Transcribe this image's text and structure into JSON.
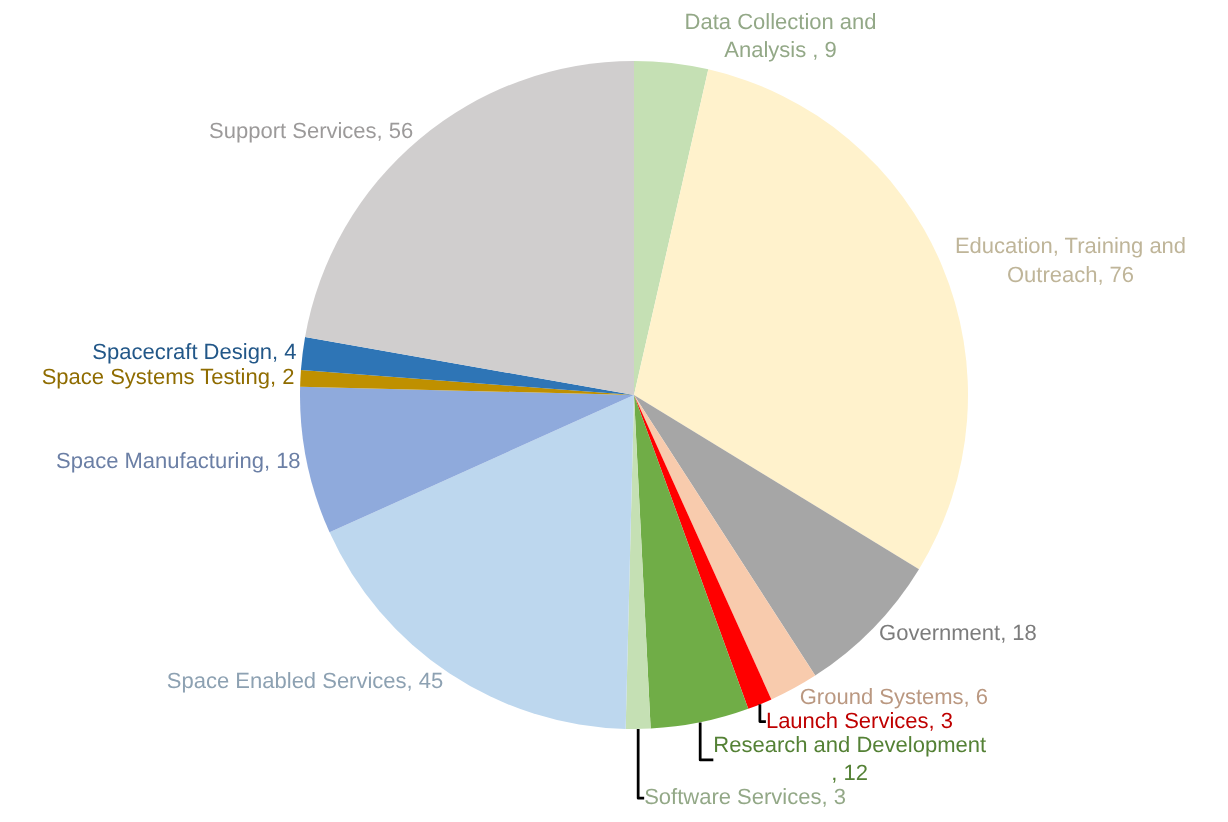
{
  "chart_data": {
    "type": "pie",
    "categories": [
      "Data Collection and Analysis ",
      "Education, Training and Outreach",
      "Government",
      "Ground Systems",
      "Launch Services",
      "Research and Development",
      "Software Services",
      "Space Enabled Services",
      "Space Manufacturing",
      "Space Systems Testing",
      "Spacecraft Design",
      "Support Services"
    ],
    "values": [
      9,
      76,
      18,
      6,
      3,
      12,
      3,
      45,
      18,
      2,
      4,
      56
    ],
    "colors": [
      "#c5e0b4",
      "#fff2cc",
      "#a6a6a6",
      "#f8cbad",
      "#ff0000",
      "#70ad47",
      "#c5e0b4",
      "#bdd7ee",
      "#8faadc",
      "#bf9000",
      "#2e75b6",
      "#d0cece"
    ],
    "value_labels": [
      ", 9",
      ", 76",
      ", 18",
      ", 6",
      ", 3",
      ", 12",
      ", 3",
      ", 45",
      ", 18",
      ", 2",
      ", 4",
      ", 56"
    ],
    "legend": false
  }
}
